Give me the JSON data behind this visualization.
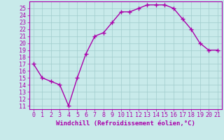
{
  "x": [
    0,
    1,
    2,
    3,
    4,
    5,
    6,
    7,
    8,
    9,
    10,
    11,
    12,
    13,
    14,
    15,
    16,
    17,
    18,
    19,
    20,
    21
  ],
  "y": [
    17,
    15,
    14.5,
    14,
    11,
    15,
    18.5,
    21,
    21.5,
    23,
    24.5,
    24.5,
    25,
    25.5,
    25.5,
    25.5,
    25,
    23.5,
    22,
    20,
    19,
    19
  ],
  "line_color": "#aa00aa",
  "marker": "+",
  "marker_size": 4,
  "marker_lw": 1.0,
  "bg_color": "#c8eaea",
  "grid_color": "#a0cccc",
  "xlabel": "Windchill (Refroidissement éolien,°C)",
  "xlabel_color": "#aa00aa",
  "ylim": [
    10.5,
    26
  ],
  "xlim": [
    -0.5,
    21.5
  ],
  "yticks": [
    11,
    12,
    13,
    14,
    15,
    16,
    17,
    18,
    19,
    20,
    21,
    22,
    23,
    24,
    25
  ],
  "xticks": [
    0,
    1,
    2,
    3,
    4,
    5,
    6,
    7,
    8,
    9,
    10,
    11,
    12,
    13,
    14,
    15,
    16,
    17,
    18,
    19,
    20,
    21
  ],
  "tick_color": "#aa00aa",
  "spine_color": "#aa00aa",
  "line_width": 1.0,
  "tick_fontsize": 6.0,
  "xlabel_fontsize": 6.5
}
